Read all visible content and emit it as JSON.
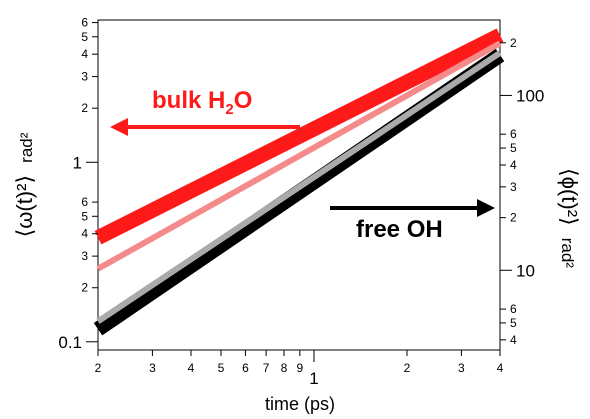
{
  "chart_data": {
    "type": "line",
    "xlabel": "time (ps)",
    "xscale": "log",
    "xlim": [
      0.2,
      4.0
    ],
    "x_ticks": [
      {
        "v": 0.2,
        "t": "2"
      },
      {
        "v": 0.3,
        "t": "3"
      },
      {
        "v": 0.4,
        "t": "4"
      },
      {
        "v": 0.5,
        "t": "5"
      },
      {
        "v": 0.6,
        "t": "6"
      },
      {
        "v": 0.7,
        "t": "7"
      },
      {
        "v": 0.8,
        "t": "8"
      },
      {
        "v": 0.9,
        "t": "9"
      },
      {
        "v": 1.0,
        "t": "1"
      },
      {
        "v": 2.0,
        "t": "2"
      },
      {
        "v": 3.0,
        "t": "3"
      },
      {
        "v": 4.0,
        "t": "4"
      }
    ],
    "y_left": {
      "label_main": "⟨ω(t)²⟩",
      "label_unit": "rad²",
      "scale": "log",
      "lim": [
        0.09,
        6.2
      ],
      "ticks": [
        {
          "v": 0.1,
          "t": "0.1"
        },
        {
          "v": 0.2,
          "t": "2"
        },
        {
          "v": 0.3,
          "t": "3"
        },
        {
          "v": 0.4,
          "t": "4"
        },
        {
          "v": 0.5,
          "t": "5"
        },
        {
          "v": 0.6,
          "t": "6"
        },
        {
          "v": 1,
          "t": "1"
        },
        {
          "v": 2,
          "t": "2"
        },
        {
          "v": 3,
          "t": "3"
        },
        {
          "v": 4,
          "t": "4"
        },
        {
          "v": 5,
          "t": "5"
        },
        {
          "v": 6,
          "t": "6"
        }
      ]
    },
    "y_right": {
      "label_main": "⟨ϕ(t)²⟩",
      "label_unit": "rad²",
      "scale": "log",
      "lim": [
        3.5,
        270
      ],
      "ticks": [
        {
          "v": 4,
          "t": "4"
        },
        {
          "v": 5,
          "t": "5"
        },
        {
          "v": 6,
          "t": "6"
        },
        {
          "v": 10,
          "t": "10"
        },
        {
          "v": 20,
          "t": "2"
        },
        {
          "v": 30,
          "t": "3"
        },
        {
          "v": 40,
          "t": "4"
        },
        {
          "v": 50,
          "t": "5"
        },
        {
          "v": 60,
          "t": "6"
        },
        {
          "v": 100,
          "t": "100"
        },
        {
          "v": 200,
          "t": "2"
        }
      ]
    },
    "series": [
      {
        "axis": "left",
        "color": "#ff1a1a",
        "style": "thick band",
        "x": [
          0.2,
          4.0
        ],
        "y": [
          0.38,
          5.1
        ]
      },
      {
        "axis": "left",
        "color": "#f58a8a",
        "style": "line",
        "x": [
          0.2,
          4.0
        ],
        "y": [
          0.255,
          4.6
        ]
      },
      {
        "axis": "right",
        "color": "#000000",
        "style": "thick band",
        "x": [
          0.2,
          4.0
        ],
        "y": [
          4.6,
          170
        ]
      },
      {
        "axis": "right",
        "color": "#aaaaaa",
        "style": "line",
        "x": [
          0.2,
          4.0
        ],
        "y": [
          5.1,
          175
        ]
      }
    ],
    "annotations": [
      {
        "text": "bulk H",
        "sub": "2",
        "tail": "O",
        "color": "#ff1a1a",
        "arrow": "left"
      },
      {
        "text": "free OH",
        "color": "#000000",
        "arrow": "right"
      }
    ]
  }
}
